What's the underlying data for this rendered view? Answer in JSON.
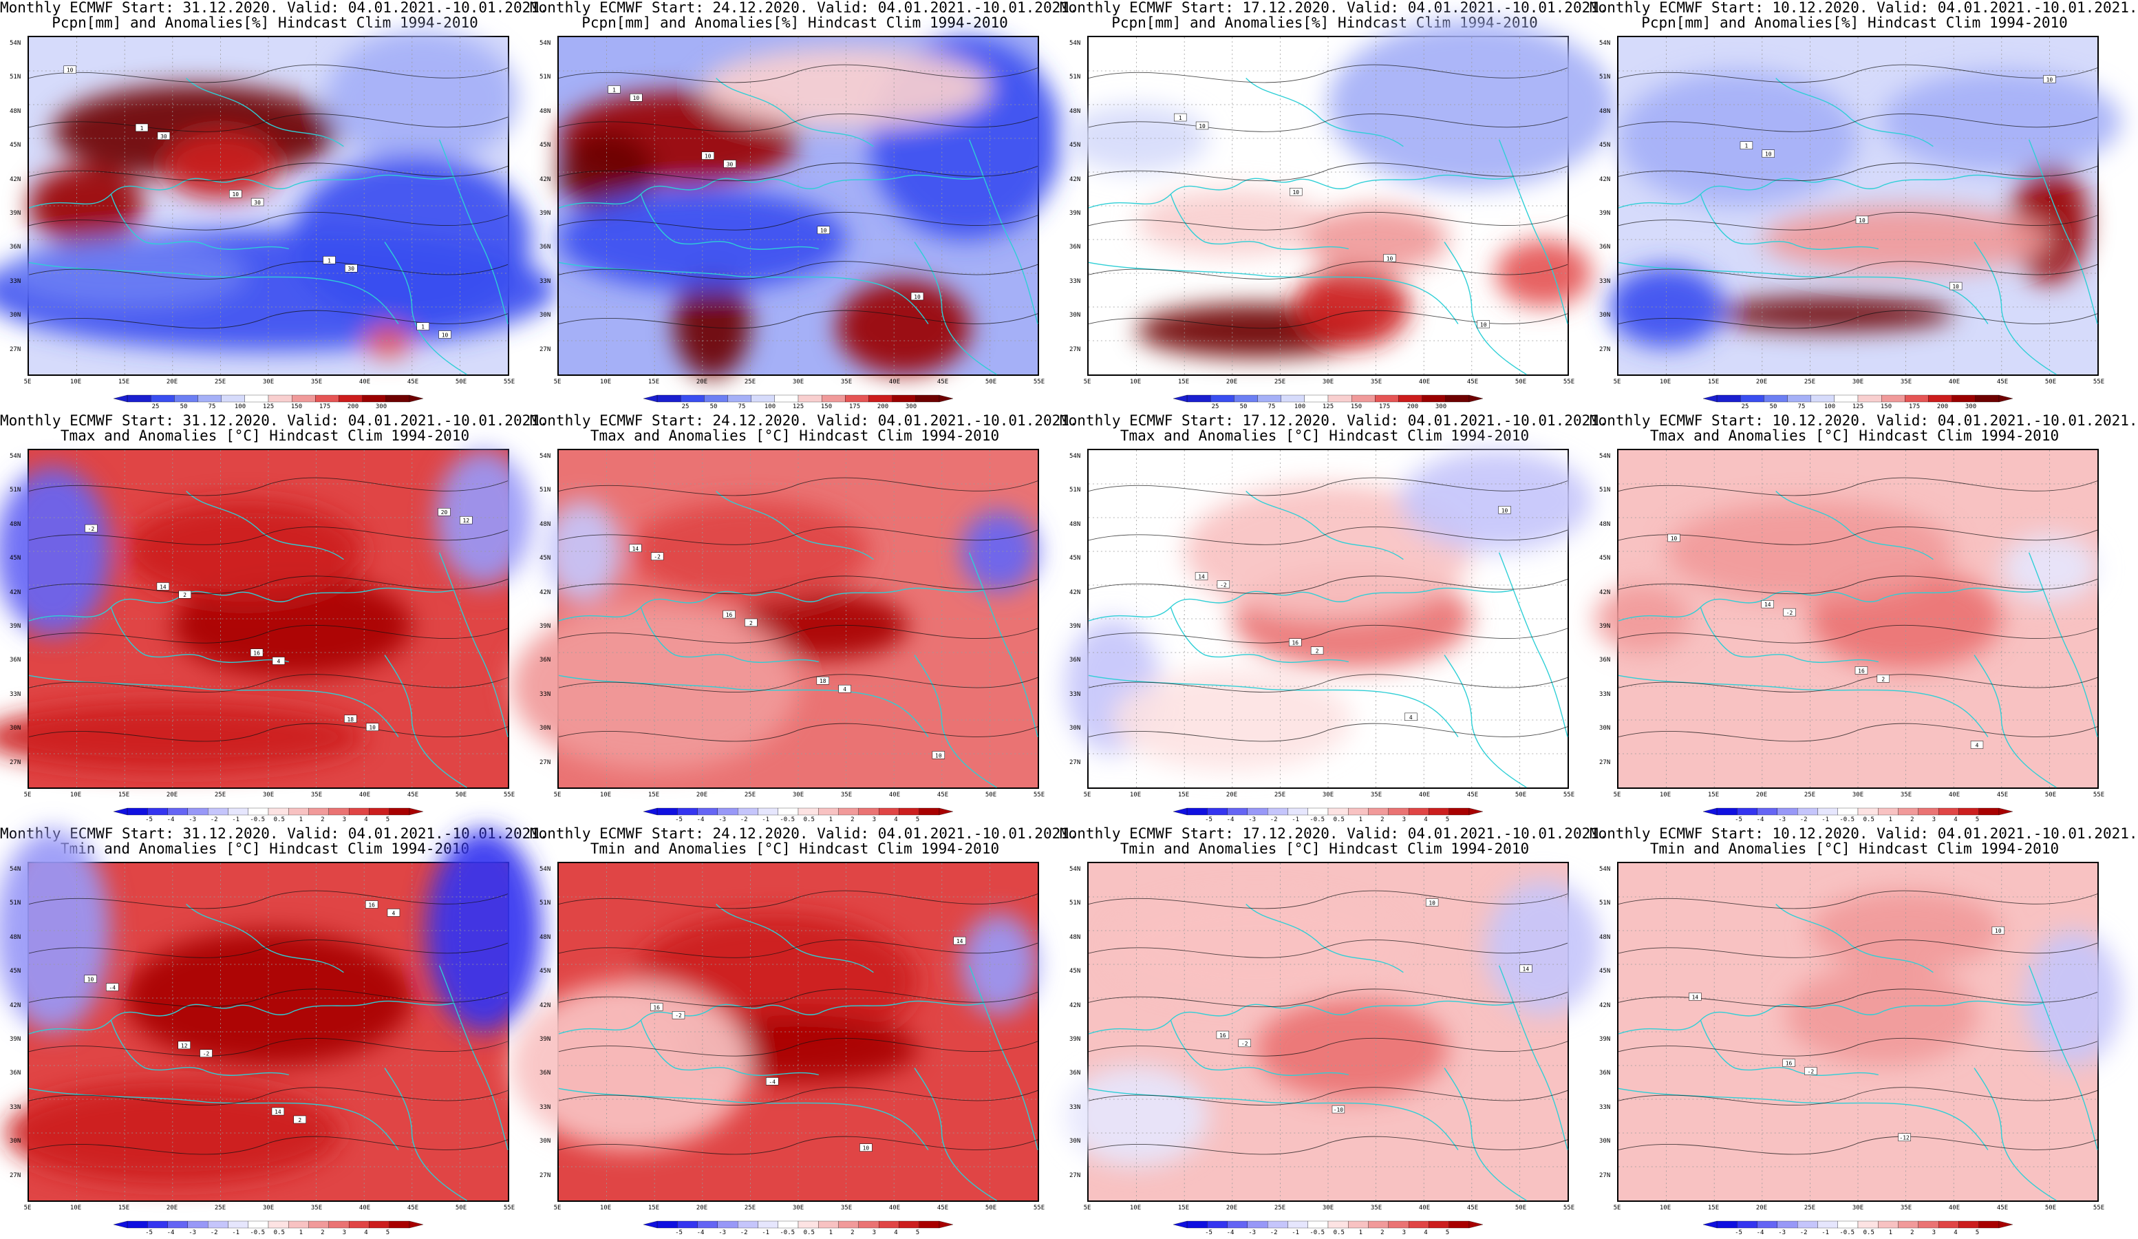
{
  "palette": {
    "precip": [
      "#1a1fcf",
      "#3a4ef0",
      "#6c7ff3",
      "#a5b0f7",
      "#d6dbfb",
      "#ffffff",
      "#f8cfcf",
      "#f09a9a",
      "#e55555",
      "#cc1c1c",
      "#9a0000",
      "#6e0000"
    ],
    "temp": [
      "#1010e0",
      "#3535f0",
      "#6565f4",
      "#9898f7",
      "#c5c5fb",
      "#e6e6fd",
      "#ffffff",
      "#fde3e3",
      "#f8c2c2",
      "#f19a9a",
      "#ea7373",
      "#e04545",
      "#cc1e1e",
      "#a80000"
    ],
    "coast": "#2ecfd6",
    "contour": "#111111"
  },
  "axes": {
    "lat_labels": [
      "54N",
      "51N",
      "48N",
      "45N",
      "42N",
      "39N",
      "36N",
      "33N",
      "30N",
      "27N"
    ],
    "lon_labels": [
      "5E",
      "10E",
      "15E",
      "20E",
      "25E",
      "30E",
      "35E",
      "40E",
      "45E",
      "50E",
      "55E"
    ]
  },
  "colorbars": {
    "precip": [
      "25",
      "50",
      "75",
      "100",
      "125",
      "150",
      "175",
      "200",
      "300"
    ],
    "temp": [
      "-5",
      "-4",
      "-3",
      "-2",
      "-1",
      "-0.5",
      "0.5",
      "1",
      "2",
      "3",
      "4",
      "5"
    ]
  },
  "rows": [
    {
      "variable": "Pcpn[mm] and Anomalies[%] Hindcast Clim 1994-2010",
      "scale": "precip"
    },
    {
      "variable": "Tmax and Anomalies [°C] Hindcast Clim 1994-2010",
      "scale": "temp"
    },
    {
      "variable": "Tmin and Anomalies [°C] Hindcast Clim 1994-2010",
      "scale": "temp"
    }
  ],
  "columns": [
    {
      "title": "Monthly ECMWF Start: 31.12.2020. Valid: 04.01.2021.-10.01.2021."
    },
    {
      "title": "Monthly ECMWF Start: 24.12.2020. Valid: 04.01.2021.-10.01.2021."
    },
    {
      "title": "Monthly ECMWF Start: 17.12.2020. Valid: 04.01.2021.-10.01.2021."
    },
    {
      "title": "Monthly ECMWF Start: 10.12.2020. Valid: 04.01.2021.-10.01.2021."
    }
  ],
  "panels": [
    [
      {
        "base": 4,
        "blobs": [
          [
            0.35,
            0.28,
            0.3,
            0.14,
            11
          ],
          [
            0.12,
            0.5,
            0.12,
            0.12,
            10
          ],
          [
            0.4,
            0.38,
            0.12,
            0.1,
            9
          ],
          [
            0.82,
            0.18,
            0.2,
            0.2,
            3
          ],
          [
            0.5,
            0.75,
            0.6,
            0.18,
            1
          ],
          [
            0.8,
            0.6,
            0.25,
            0.25,
            1
          ],
          [
            0.2,
            0.7,
            0.25,
            0.1,
            2
          ],
          [
            0.75,
            0.9,
            0.05,
            0.05,
            8
          ]
        ],
        "contour_labels": [
          "10",
          "30",
          "30",
          "30",
          "10",
          "1",
          "10",
          "1",
          "1"
        ]
      },
      {
        "base": 3,
        "blobs": [
          [
            0.25,
            0.3,
            0.25,
            0.14,
            10
          ],
          [
            0.1,
            0.4,
            0.1,
            0.12,
            11
          ],
          [
            0.32,
            0.85,
            0.08,
            0.16,
            11
          ],
          [
            0.72,
            0.86,
            0.14,
            0.14,
            10
          ],
          [
            0.3,
            0.6,
            0.3,
            0.15,
            1
          ],
          [
            0.85,
            0.3,
            0.2,
            0.3,
            1
          ],
          [
            0.6,
            0.15,
            0.3,
            0.12,
            6
          ]
        ],
        "contour_labels": [
          "10",
          "30",
          "10",
          "10",
          "1",
          "10"
        ]
      },
      {
        "base": 5,
        "blobs": [
          [
            0.35,
            0.87,
            0.25,
            0.08,
            11
          ],
          [
            0.55,
            0.8,
            0.12,
            0.12,
            9
          ],
          [
            0.8,
            0.2,
            0.3,
            0.25,
            3
          ],
          [
            0.1,
            0.3,
            0.15,
            0.1,
            4
          ],
          [
            0.3,
            0.55,
            0.2,
            0.1,
            6
          ],
          [
            0.95,
            0.7,
            0.1,
            0.1,
            8
          ],
          [
            0.6,
            0.6,
            0.15,
            0.1,
            7
          ]
        ],
        "contour_labels": [
          "10",
          "10",
          "10",
          "10",
          "1"
        ]
      },
      {
        "base": 4,
        "blobs": [
          [
            0.45,
            0.82,
            0.25,
            0.05,
            11
          ],
          [
            0.9,
            0.55,
            0.08,
            0.18,
            10
          ],
          [
            0.1,
            0.8,
            0.12,
            0.12,
            1
          ],
          [
            0.25,
            0.3,
            0.25,
            0.2,
            3
          ],
          [
            0.6,
            0.6,
            0.3,
            0.1,
            7
          ],
          [
            0.8,
            0.25,
            0.25,
            0.15,
            3
          ]
        ],
        "contour_labels": [
          "10",
          "10",
          "10",
          "10",
          "1"
        ]
      }
    ],
    [
      {
        "base": 11,
        "blobs": [
          [
            0.55,
            0.52,
            0.25,
            0.15,
            13
          ],
          [
            0.45,
            0.3,
            0.25,
            0.15,
            12
          ],
          [
            0.05,
            0.3,
            0.12,
            0.25,
            2
          ],
          [
            0.95,
            0.2,
            0.1,
            0.2,
            3
          ],
          [
            0.3,
            0.85,
            0.4,
            0.1,
            12
          ]
        ],
        "contour_labels": [
          "-2",
          "2",
          "4",
          "10",
          "12",
          "14",
          "16",
          "18",
          "20"
        ]
      },
      {
        "base": 10,
        "blobs": [
          [
            0.55,
            0.52,
            0.18,
            0.1,
            13
          ],
          [
            0.4,
            0.3,
            0.25,
            0.15,
            11
          ],
          [
            0.05,
            0.3,
            0.08,
            0.15,
            4
          ],
          [
            0.92,
            0.3,
            0.08,
            0.12,
            2
          ],
          [
            0.2,
            0.7,
            0.3,
            0.25,
            9
          ]
        ],
        "contour_labels": [
          "-2",
          "2",
          "4",
          "10",
          "14",
          "16",
          "18"
        ]
      },
      {
        "base": 6,
        "blobs": [
          [
            0.55,
            0.5,
            0.25,
            0.15,
            10
          ],
          [
            0.5,
            0.3,
            0.3,
            0.2,
            8
          ],
          [
            0.05,
            0.7,
            0.1,
            0.2,
            4
          ],
          [
            0.85,
            0.15,
            0.2,
            0.15,
            4
          ],
          [
            0.3,
            0.8,
            0.25,
            0.15,
            7
          ]
        ],
        "contour_labels": [
          "-2",
          "2",
          "4",
          "10",
          "14",
          "16"
        ]
      },
      {
        "base": 8,
        "blobs": [
          [
            0.6,
            0.5,
            0.2,
            0.15,
            10
          ],
          [
            0.9,
            0.35,
            0.1,
            0.1,
            5
          ],
          [
            0.05,
            0.5,
            0.1,
            0.1,
            9
          ],
          [
            0.4,
            0.3,
            0.3,
            0.15,
            9
          ]
        ],
        "contour_labels": [
          "-2",
          "2",
          "4",
          "10",
          "14",
          "16"
        ]
      }
    ],
    [
      {
        "base": 11,
        "blobs": [
          [
            0.5,
            0.4,
            0.3,
            0.2,
            13
          ],
          [
            0.95,
            0.2,
            0.12,
            0.3,
            1
          ],
          [
            0.05,
            0.2,
            0.12,
            0.3,
            3
          ],
          [
            0.3,
            0.8,
            0.35,
            0.15,
            12
          ]
        ],
        "contour_labels": [
          "-4",
          "-2",
          "2",
          "4",
          "10",
          "12",
          "14",
          "16"
        ]
      },
      {
        "base": 11,
        "blobs": [
          [
            0.45,
            0.35,
            0.3,
            0.2,
            12
          ],
          [
            0.5,
            0.55,
            0.25,
            0.1,
            13
          ],
          [
            0.92,
            0.3,
            0.08,
            0.15,
            3
          ],
          [
            0.15,
            0.6,
            0.25,
            0.25,
            8
          ]
        ],
        "contour_labels": [
          "-2",
          "-4",
          "10",
          "14",
          "16"
        ]
      },
      {
        "base": 8,
        "blobs": [
          [
            0.55,
            0.55,
            0.2,
            0.15,
            10
          ],
          [
            0.95,
            0.25,
            0.12,
            0.2,
            4
          ],
          [
            0.1,
            0.75,
            0.15,
            0.15,
            5
          ],
          [
            0.35,
            0.25,
            0.3,
            0.15,
            8
          ]
        ],
        "contour_labels": [
          "-2",
          "-10",
          "10",
          "14",
          "16"
        ]
      },
      {
        "base": 8,
        "blobs": [
          [
            0.55,
            0.45,
            0.2,
            0.15,
            9
          ],
          [
            0.95,
            0.4,
            0.1,
            0.2,
            4
          ],
          [
            0.6,
            0.2,
            0.2,
            0.12,
            9
          ]
        ],
        "contour_labels": [
          "-2",
          "-12",
          "10",
          "14",
          "16"
        ]
      }
    ]
  ]
}
